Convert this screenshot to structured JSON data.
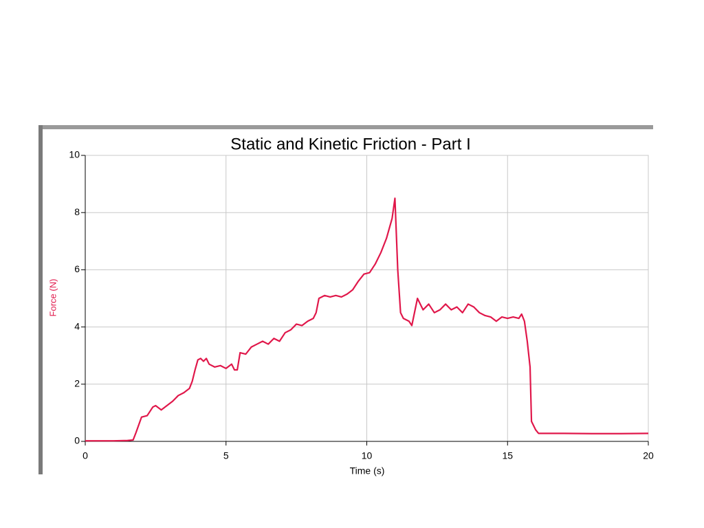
{
  "chart_data": {
    "type": "line",
    "title": "Static and Kinetic Friction - Part I",
    "x_label": "Time (s)",
    "y_label": "Force (N)",
    "color": "#e0174a",
    "grid": true,
    "xlim": [
      0,
      20
    ],
    "xticks": [
      0,
      5,
      10,
      15,
      20
    ],
    "ylim": [
      0,
      10
    ],
    "yticks": [
      0,
      2,
      4,
      6,
      8,
      10
    ],
    "x": [
      0,
      0.5,
      1.0,
      1.5,
      1.7,
      1.8,
      2.0,
      2.2,
      2.4,
      2.5,
      2.7,
      2.9,
      3.1,
      3.3,
      3.5,
      3.7,
      3.8,
      3.9,
      4.0,
      4.1,
      4.2,
      4.3,
      4.4,
      4.6,
      4.8,
      5.0,
      5.2,
      5.3,
      5.4,
      5.5,
      5.7,
      5.9,
      6.1,
      6.3,
      6.5,
      6.7,
      6.9,
      7.1,
      7.3,
      7.5,
      7.7,
      7.9,
      8.1,
      8.2,
      8.3,
      8.5,
      8.7,
      8.9,
      9.1,
      9.3,
      9.5,
      9.7,
      9.9,
      10.1,
      10.3,
      10.5,
      10.7,
      10.9,
      11.0,
      11.1,
      11.2,
      11.3,
      11.5,
      11.6,
      11.8,
      12.0,
      12.2,
      12.4,
      12.6,
      12.8,
      13.0,
      13.2,
      13.4,
      13.6,
      13.8,
      14.0,
      14.2,
      14.4,
      14.6,
      14.8,
      15.0,
      15.2,
      15.4,
      15.5,
      15.6,
      15.7,
      15.8,
      15.85,
      16.0,
      16.1,
      17.0,
      18.0,
      19.0,
      20.0
    ],
    "values": [
      0.02,
      0.02,
      0.02,
      0.03,
      0.05,
      0.3,
      0.85,
      0.9,
      1.2,
      1.25,
      1.1,
      1.25,
      1.4,
      1.6,
      1.7,
      1.85,
      2.1,
      2.5,
      2.85,
      2.9,
      2.8,
      2.9,
      2.7,
      2.6,
      2.65,
      2.55,
      2.7,
      2.5,
      2.5,
      3.1,
      3.05,
      3.3,
      3.4,
      3.5,
      3.4,
      3.6,
      3.5,
      3.8,
      3.9,
      4.1,
      4.05,
      4.2,
      4.3,
      4.5,
      5.0,
      5.1,
      5.05,
      5.1,
      5.05,
      5.15,
      5.3,
      5.6,
      5.85,
      5.9,
      6.2,
      6.6,
      7.1,
      7.8,
      8.5,
      6.0,
      4.5,
      4.3,
      4.2,
      4.05,
      5.0,
      4.6,
      4.8,
      4.5,
      4.6,
      4.8,
      4.6,
      4.7,
      4.5,
      4.8,
      4.7,
      4.5,
      4.4,
      4.35,
      4.2,
      4.35,
      4.3,
      4.35,
      4.3,
      4.45,
      4.2,
      3.5,
      2.6,
      0.7,
      0.4,
      0.28,
      0.28,
      0.27,
      0.27,
      0.28
    ]
  }
}
